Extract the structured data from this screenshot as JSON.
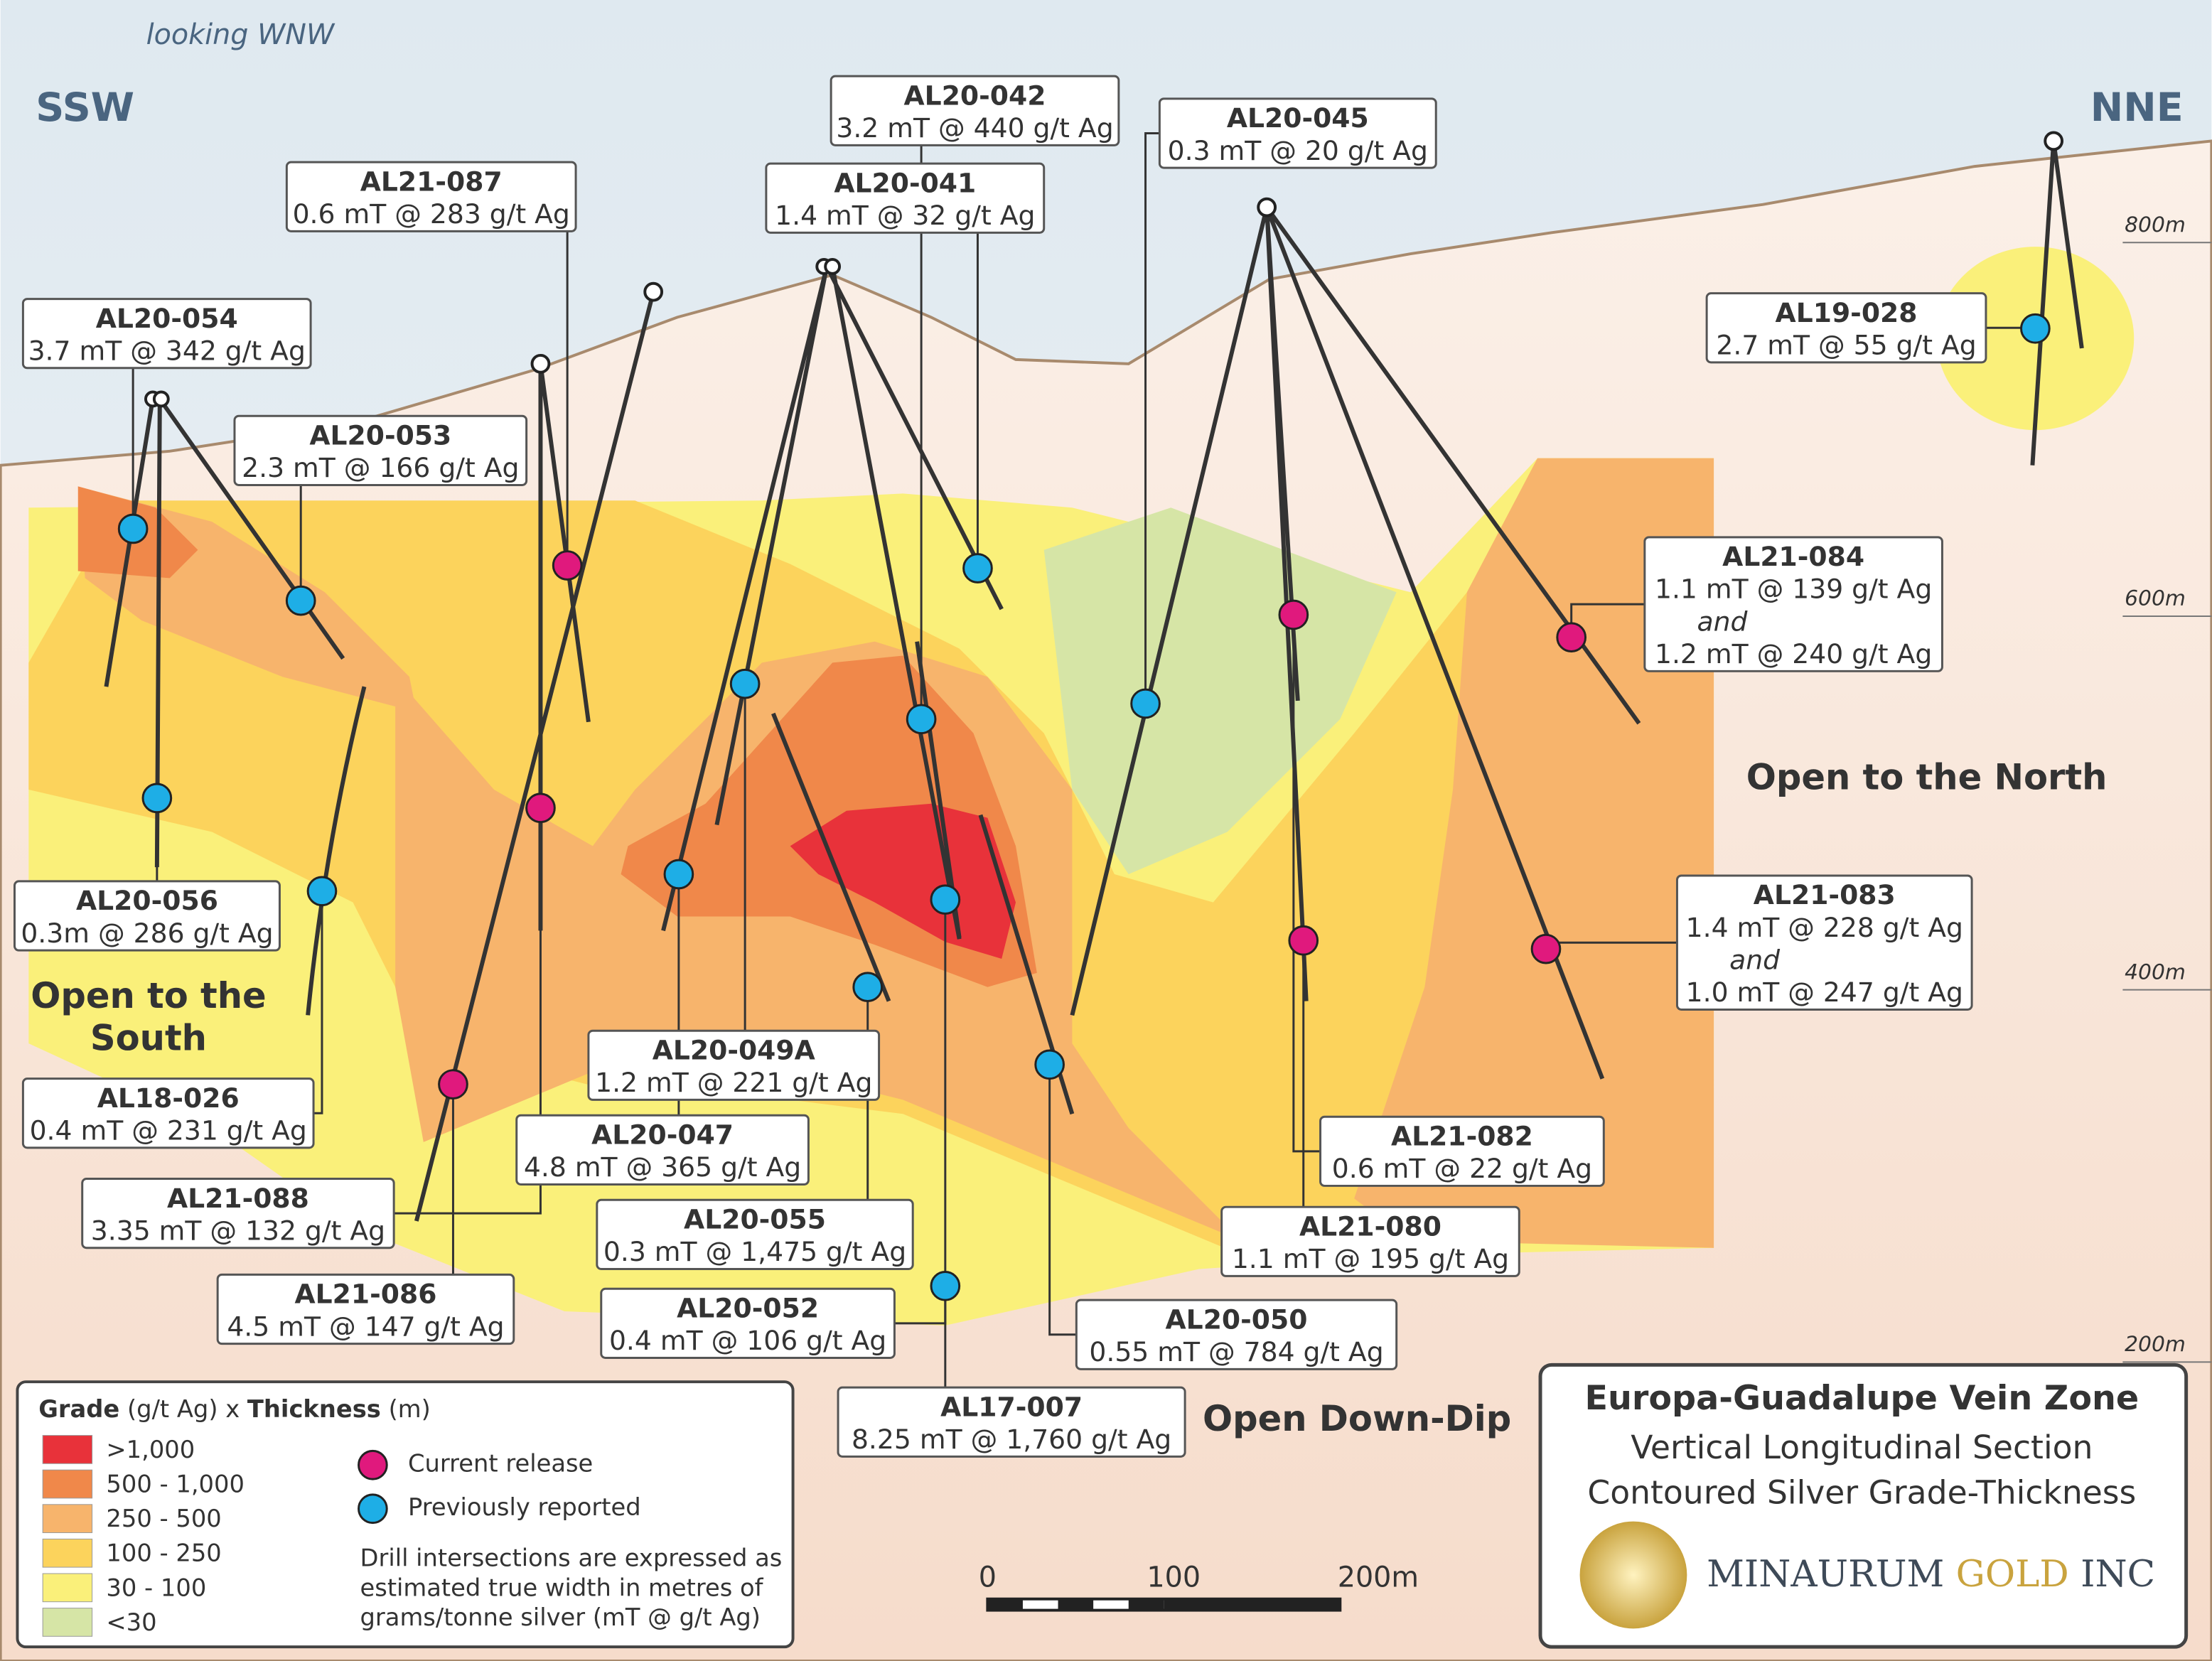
{
  "orientation": "looking WNW",
  "directions": [
    "SSW",
    "NNE"
  ],
  "elevations": [
    "800m",
    "600m",
    "400m",
    "200m"
  ],
  "open_south": [
    "Open to the",
    "South"
  ],
  "open_north": "Open to the North",
  "open_down": "Open Down-Dip",
  "holes": [
    {
      "id": "AL20-054",
      "lines": [
        "3.7 mT @ 342 g/t Ag"
      ],
      "color": "#1eaee6"
    },
    {
      "id": "AL21-087",
      "lines": [
        "0.6 mT @ 283 g/t Ag"
      ],
      "color": "#e0197d"
    },
    {
      "id": "AL20-053",
      "lines": [
        "2.3 mT @ 166 g/t Ag"
      ],
      "color": "#1eaee6"
    },
    {
      "id": "AL20-042",
      "lines": [
        "3.2 mT @ 440 g/t Ag"
      ],
      "color": "#1eaee6"
    },
    {
      "id": "AL20-041",
      "lines": [
        "1.4 mT @ 32 g/t Ag"
      ],
      "color": "#1eaee6"
    },
    {
      "id": "AL20-045",
      "lines": [
        "0.3 mT @ 20 g/t Ag"
      ],
      "color": "#1eaee6"
    },
    {
      "id": "AL19-028",
      "lines": [
        "2.7 mT @ 55 g/t Ag"
      ],
      "color": "#1eaee6"
    },
    {
      "id": "AL21-084",
      "lines": [
        "1.1 mT @ 139 g/t Ag",
        "and",
        "1.2 mT @ 240 g/t Ag"
      ],
      "color": "#e0197d"
    },
    {
      "id": "AL20-056",
      "lines": [
        "0.3m @ 286 g/t Ag"
      ],
      "color": "#1eaee6"
    },
    {
      "id": "AL21-083",
      "lines": [
        "1.4 mT @ 228 g/t Ag",
        "and",
        "1.0 mT @ 247 g/t Ag"
      ],
      "color": "#e0197d"
    },
    {
      "id": "AL18-026",
      "lines": [
        "0.4 mT @ 231 g/t Ag"
      ],
      "color": "#1eaee6"
    },
    {
      "id": "AL20-049A",
      "lines": [
        "1.2 mT @ 221 g/t Ag"
      ],
      "color": "#1eaee6"
    },
    {
      "id": "AL20-047",
      "lines": [
        "4.8 mT @ 365 g/t Ag"
      ],
      "color": "#1eaee6"
    },
    {
      "id": "AL21-088",
      "lines": [
        "3.35 mT @ 132 g/t Ag"
      ],
      "color": "#e0197d"
    },
    {
      "id": "AL21-082",
      "lines": [
        "0.6 mT @ 22 g/t Ag"
      ],
      "color": "#e0197d"
    },
    {
      "id": "AL21-080",
      "lines": [
        "1.1 mT @ 195 g/t Ag"
      ],
      "color": "#e0197d"
    },
    {
      "id": "AL20-055",
      "lines": [
        "0.3 mT @ 1,475 g/t Ag"
      ],
      "color": "#1eaee6"
    },
    {
      "id": "AL21-086",
      "lines": [
        "4.5 mT @ 147 g/t Ag"
      ],
      "color": "#e0197d"
    },
    {
      "id": "AL20-052",
      "lines": [
        "0.4 mT @ 106 g/t Ag"
      ],
      "color": "#1eaee6"
    },
    {
      "id": "AL20-050",
      "lines": [
        "0.55 mT @ 784 g/t Ag"
      ],
      "color": "#1eaee6"
    },
    {
      "id": "AL17-007",
      "lines": [
        "8.25 mT @ 1,760 g/t Ag"
      ],
      "color": "#1eaee6"
    }
  ],
  "legend": {
    "title_parts": [
      "Grade",
      "(g/t Ag) x",
      "Thickness",
      "(m)"
    ],
    "classes": [
      {
        "label": ">1,000",
        "color": "#e8323a"
      },
      {
        "label": "500 - 1,000",
        "color": "#f0884a"
      },
      {
        "label": "250 - 500",
        "color": "#f7b46c"
      },
      {
        "label": "100 - 250",
        "color": "#fcd35c"
      },
      {
        "label": "30 - 100",
        "color": "#faf07a"
      },
      {
        "label": "<30",
        "color": "#d6e5a6"
      }
    ],
    "markers": [
      {
        "label": "Current release",
        "color": "#e0197d"
      },
      {
        "label": "Previously reported",
        "color": "#1eaee6"
      }
    ],
    "note": [
      "Drill intersections are expressed as",
      "estimated true width in metres of",
      "grams/tonne silver (mT @ g/t Ag)"
    ]
  },
  "scale_bar": [
    "0",
    "100",
    "200m"
  ],
  "title_box": {
    "title": "Europa-Guadalupe Vein Zone",
    "subtitle": [
      "Vertical Longitudinal Section",
      "Contoured Silver Grade-Thickness"
    ],
    "company": [
      "MINAURUM",
      "GOLD",
      "INC"
    ]
  }
}
